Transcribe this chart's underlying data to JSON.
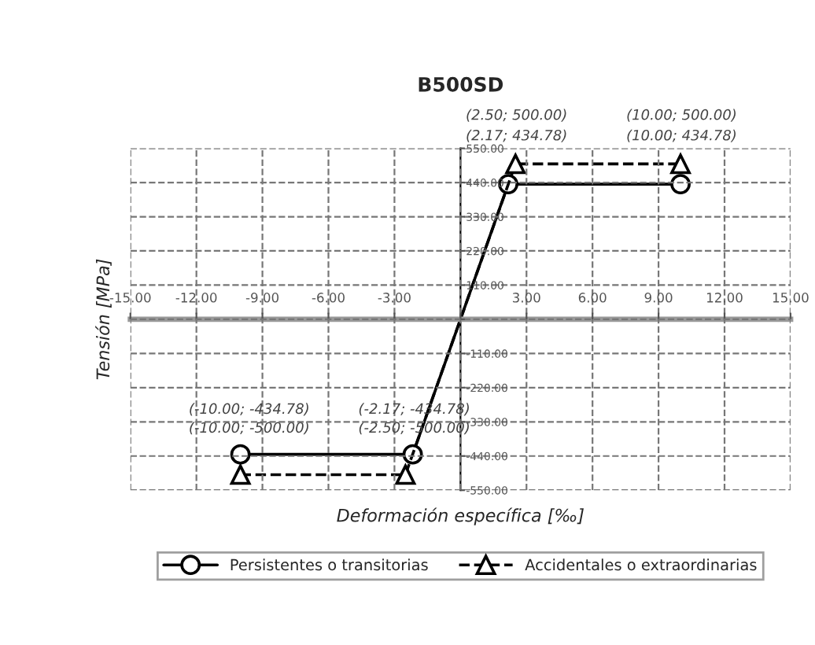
{
  "chart_data": {
    "type": "line",
    "title": "B500SD",
    "xlabel": "Deformación específica [‰]",
    "ylabel": "Tensión [MPa]",
    "series": [
      {
        "name": "Persistentes o transitorias",
        "color": "#000000",
        "marker": "circle",
        "line_style": "solid",
        "x": [
          -10,
          -2.17,
          2.17,
          10
        ],
        "values": [
          -434.78,
          -434.78,
          434.78,
          434.78
        ]
      },
      {
        "name": "Accidentales o extraordinarias",
        "color": "#000000",
        "marker": "triangle",
        "line_style": "dashed",
        "x": [
          -10,
          -2.5,
          2.5,
          10
        ],
        "values": [
          -500,
          -500,
          500,
          500
        ]
      }
    ],
    "xlim": [
      -15,
      15
    ],
    "ylim": [
      -550,
      550
    ],
    "xticks": [
      {
        "value": -15,
        "label": "-15.00"
      },
      {
        "value": -12,
        "label": "-12.00"
      },
      {
        "value": -9,
        "label": "-9.00"
      },
      {
        "value": -6,
        "label": "-6.00"
      },
      {
        "value": -3,
        "label": "-3.00"
      },
      {
        "value": 0,
        "label": null
      },
      {
        "value": 3,
        "label": "3.00"
      },
      {
        "value": 6,
        "label": "6.00"
      },
      {
        "value": 9,
        "label": "9.00"
      },
      {
        "value": 12,
        "label": "12.00"
      },
      {
        "value": 15,
        "label": "15.00"
      }
    ],
    "yticks": [
      {
        "value": -550,
        "label": "-550.00"
      },
      {
        "value": -440,
        "label": "-440.00"
      },
      {
        "value": -330,
        "label": "-330.00"
      },
      {
        "value": -220,
        "label": "-220.00"
      },
      {
        "value": -110,
        "label": "-110.00"
      },
      {
        "value": 0,
        "label": null
      },
      {
        "value": 110,
        "label": "110.00"
      },
      {
        "value": 220,
        "label": "220.00"
      },
      {
        "value": 330,
        "label": "330.00"
      },
      {
        "value": 440,
        "label": "440.00"
      },
      {
        "value": 550,
        "label": "550.00"
      }
    ],
    "grid": true,
    "legend": "bottom",
    "annotations": [
      "(2.50; 500.00)",
      "(10.00; 500.00)",
      "(2.17; 434.78)",
      "(10.00; 434.78)",
      "(-10.00; -434.78)",
      "(-2.17; -434.78)",
      "(-10.00; -500.00)",
      "(-2.50; -500.00)"
    ]
  }
}
